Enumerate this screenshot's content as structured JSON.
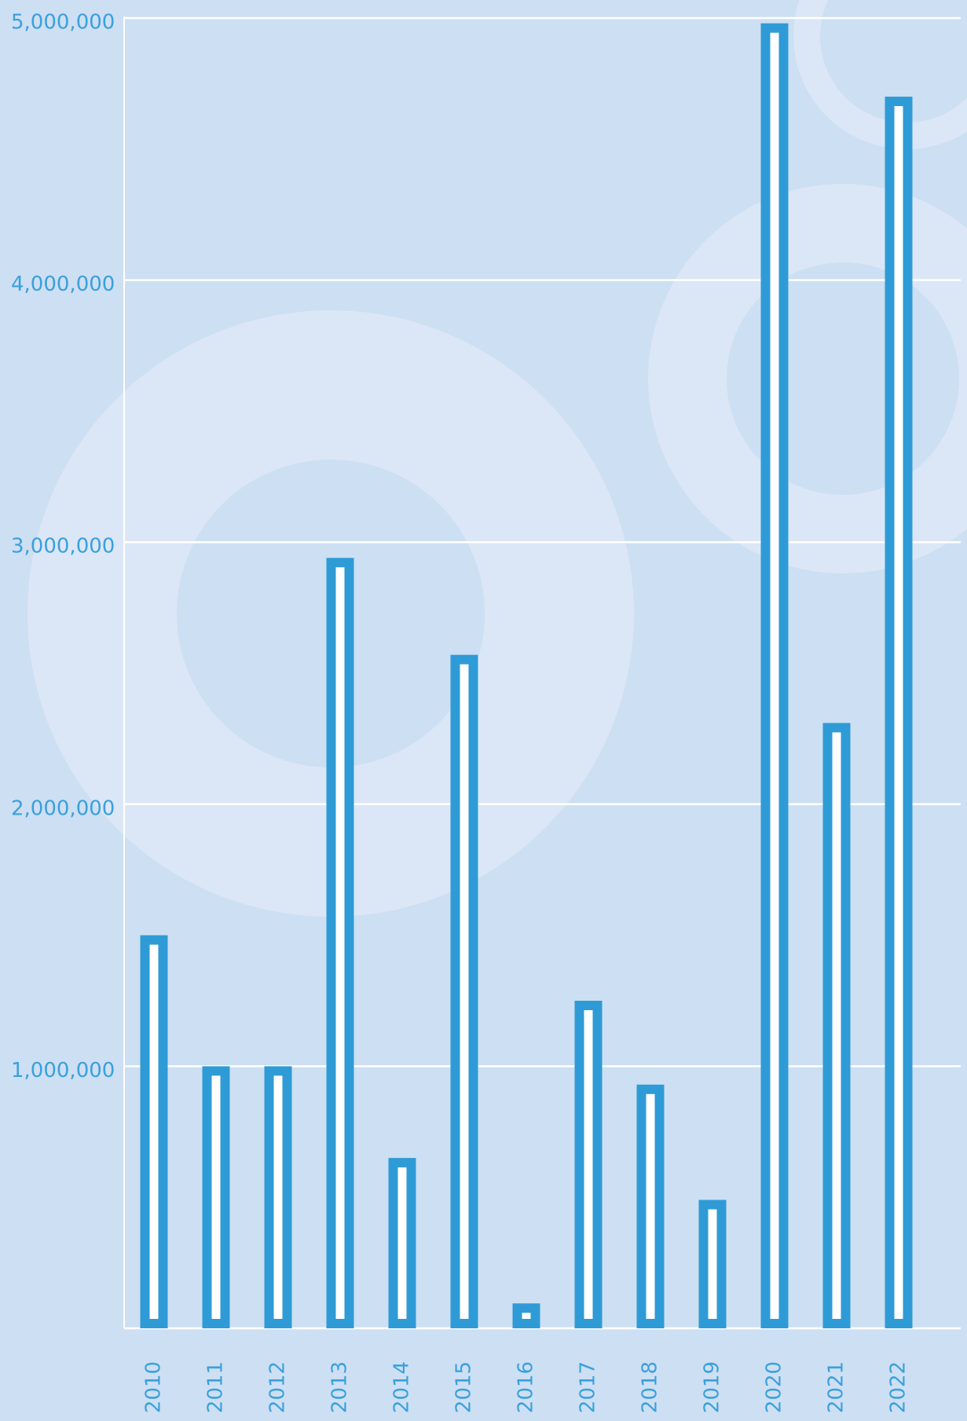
{
  "chart_data": {
    "type": "bar",
    "categories": [
      "2010",
      "2011",
      "2012",
      "2013",
      "2014",
      "2015",
      "2016",
      "2017",
      "2018",
      "2019",
      "2020",
      "2021",
      "2022"
    ],
    "values": [
      1500000,
      1000000,
      1000000,
      2940000,
      650000,
      2570000,
      95000,
      1250000,
      930000,
      490000,
      4980000,
      2310000,
      4700000
    ],
    "color": "#2e9bd6",
    "ylim": [
      0,
      5000000
    ],
    "yticks": [
      {
        "value": 1000000,
        "label": "1,000,000"
      },
      {
        "value": 2000000,
        "label": "2,000,000"
      },
      {
        "value": 3000000,
        "label": "3,000,000"
      },
      {
        "value": 4000000,
        "label": "4,000,000"
      },
      {
        "value": 5000000,
        "label": "5,000,000"
      }
    ],
    "grid": true
  }
}
